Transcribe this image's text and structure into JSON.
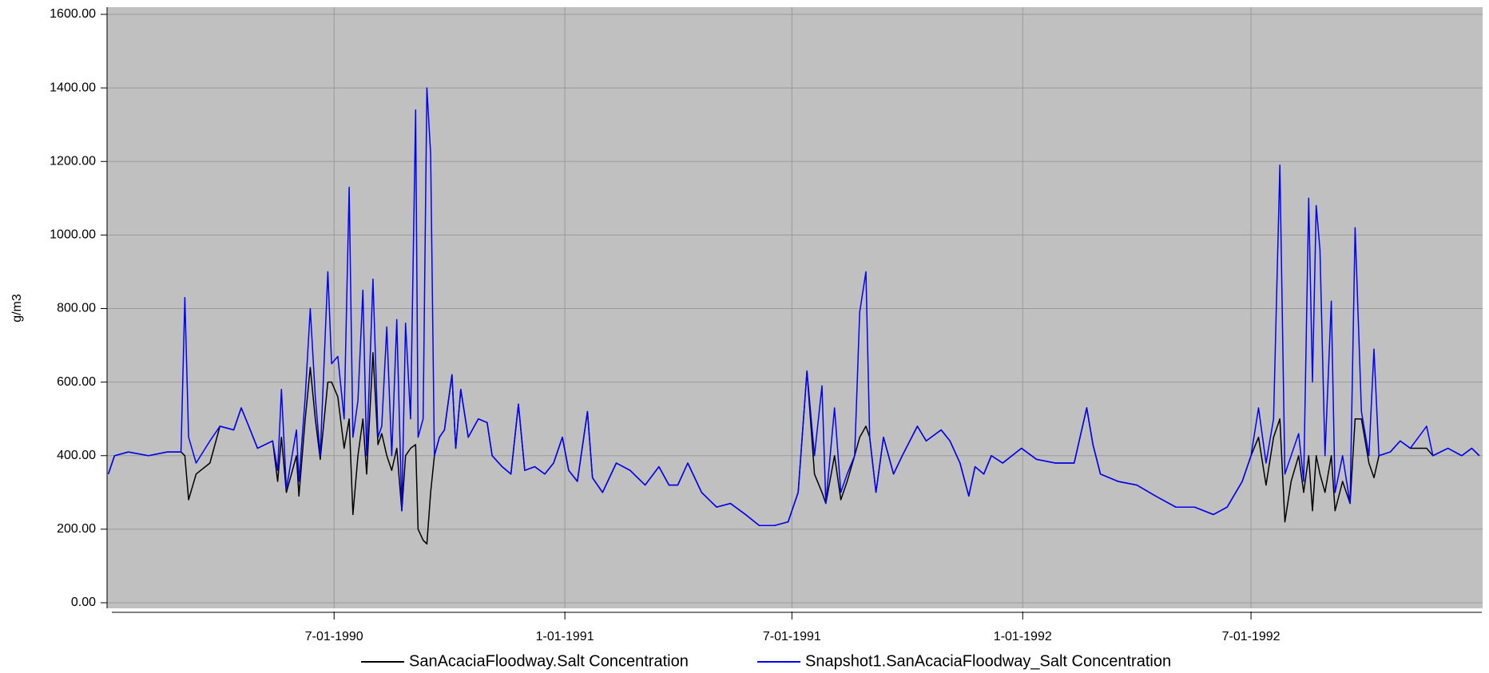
{
  "chart_data": {
    "type": "line",
    "y_label": "g/m3",
    "x": [
      "1-02-1990",
      "1-07-1990",
      "1-18-1990",
      "2-03-1990",
      "2-18-1990",
      "3-01-1990",
      "3-04-1990",
      "3-07-1990",
      "3-13-1990",
      "3-24-1990",
      "4-01-1990",
      "4-12-1990",
      "4-18-1990",
      "4-24-1990",
      "5-01-1990",
      "5-13-1990",
      "5-17-1990",
      "5-20-1990",
      "5-24-1990",
      "6-01-1990",
      "6-03-1990",
      "6-08-1990",
      "6-12-1990",
      "6-16-1990",
      "6-20-1990",
      "6-26-1990",
      "6-29-1990",
      "7-04-1990",
      "7-09-1990",
      "7-13-1990",
      "7-16-1990",
      "7-20-1990",
      "7-24-1990",
      "7-27-1990",
      "8-01-1990",
      "8-05-1990",
      "8-08-1990",
      "8-12-1990",
      "8-16-1990",
      "8-20-1990",
      "8-24-1990",
      "8-27-1990",
      "8-31-1990",
      "9-04-1990",
      "9-06-1990",
      "9-10-1990",
      "9-13-1990",
      "9-16-1990",
      "9-19-1990",
      "9-23-1990",
      "9-27-1990",
      "10-03-1990",
      "10-06-1990",
      "10-10-1990",
      "10-16-1990",
      "10-24-1990",
      "10-31-1990",
      "11-04-1990",
      "11-12-1990",
      "11-19-1990",
      "11-25-1990",
      "11-30-1990",
      "12-08-1990",
      "12-16-1990",
      "12-23-1990",
      "12-30-1990",
      "1-04-1991",
      "1-11-1991",
      "1-19-1991",
      "1-23-1991",
      "1-31-1991",
      "2-11-1991",
      "2-22-1991",
      "3-06-1991",
      "3-17-1991",
      "3-25-1991",
      "4-01-1991",
      "4-09-1991",
      "4-20-1991",
      "5-02-1991",
      "5-13-1991",
      "5-25-1991",
      "6-05-1991",
      "6-17-1991",
      "6-28-1991",
      "7-06-1991",
      "7-13-1991",
      "7-19-1991",
      "7-25-1991",
      "7-28-1991",
      "8-04-1991",
      "8-09-1991",
      "8-14-1991",
      "8-20-1991",
      "8-24-1991",
      "8-29-1991",
      "9-01-1991",
      "9-06-1991",
      "9-12-1991",
      "9-20-1991",
      "9-27-1991",
      "10-09-1991",
      "10-16-1991",
      "10-28-1991",
      "11-04-1991",
      "11-12-1991",
      "11-19-1991",
      "11-24-1991",
      "12-01-1991",
      "12-07-1991",
      "12-16-1991",
      "12-31-1991",
      "1-12-1992",
      "1-27-1992",
      "2-11-1992",
      "2-21-1992",
      "2-26-1992",
      "3-03-1992",
      "3-17-1992",
      "4-01-1992",
      "4-16-1992",
      "5-02-1992",
      "5-17-1992",
      "6-01-1992",
      "6-12-1992",
      "6-24-1992",
      "7-01-1992",
      "7-07-1992",
      "7-13-1992",
      "7-19-1992",
      "7-24-1992",
      "7-28-1992",
      "8-02-1992",
      "8-08-1992",
      "8-12-1992",
      "8-16-1992",
      "8-19-1992",
      "8-22-1992",
      "8-25-1992",
      "8-29-1992",
      "9-03-1992",
      "9-06-1992",
      "9-12-1992",
      "9-18-1992",
      "9-22-1992",
      "9-27-1992",
      "10-03-1992",
      "10-07-1992",
      "10-11-1992",
      "10-20-1992",
      "10-28-1992",
      "11-05-1992",
      "11-18-1992",
      "11-23-1992",
      "12-05-1992",
      "12-16-1992",
      "12-24-1992",
      "12-30-1992"
    ],
    "series": [
      {
        "name": "SanAcaciaFloodway.Salt Concentration",
        "color": "#000000",
        "values": [
          350,
          400,
          410,
          400,
          410,
          410,
          400,
          280,
          350,
          380,
          480,
          470,
          530,
          480,
          420,
          440,
          330,
          450,
          300,
          400,
          290,
          500,
          640,
          500,
          390,
          600,
          600,
          560,
          420,
          500,
          240,
          400,
          500,
          350,
          680,
          430,
          460,
          400,
          360,
          420,
          250,
          400,
          420,
          430,
          200,
          170,
          160,
          300,
          400,
          450,
          470,
          620,
          420,
          580,
          450,
          500,
          490,
          400,
          370,
          350,
          540,
          360,
          370,
          350,
          380,
          450,
          360,
          330,
          520,
          340,
          300,
          380,
          360,
          320,
          370,
          320,
          320,
          380,
          300,
          260,
          270,
          240,
          210,
          210,
          220,
          300,
          630,
          350,
          300,
          270,
          400,
          280,
          330,
          400,
          450,
          480,
          450,
          300,
          450,
          350,
          400,
          480,
          440,
          470,
          440,
          380,
          290,
          370,
          350,
          400,
          380,
          420,
          390,
          380,
          380,
          530,
          430,
          350,
          330,
          320,
          290,
          260,
          260,
          240,
          260,
          330,
          400,
          450,
          320,
          450,
          500,
          220,
          330,
          400,
          300,
          400,
          250,
          400,
          350,
          300,
          400,
          250,
          330,
          270,
          500,
          500,
          380,
          340,
          400,
          410,
          440,
          420,
          420,
          400,
          420,
          400,
          420,
          400
        ]
      },
      {
        "name": "Snapshot1.SanAcaciaFloodway_Salt Concentration",
        "color": "#0000ff",
        "values": [
          350,
          400,
          410,
          400,
          410,
          410,
          830,
          450,
          380,
          440,
          480,
          470,
          530,
          480,
          420,
          440,
          360,
          580,
          310,
          470,
          330,
          560,
          800,
          560,
          400,
          900,
          650,
          670,
          500,
          1130,
          450,
          550,
          850,
          400,
          880,
          450,
          480,
          750,
          400,
          770,
          250,
          760,
          500,
          1340,
          450,
          500,
          1400,
          1220,
          400,
          450,
          470,
          620,
          420,
          580,
          450,
          500,
          490,
          400,
          370,
          350,
          540,
          360,
          370,
          350,
          380,
          450,
          360,
          330,
          520,
          340,
          300,
          380,
          360,
          320,
          370,
          320,
          320,
          380,
          300,
          260,
          270,
          240,
          210,
          210,
          220,
          300,
          630,
          400,
          590,
          270,
          530,
          300,
          350,
          400,
          790,
          900,
          450,
          300,
          450,
          350,
          400,
          480,
          440,
          470,
          440,
          380,
          290,
          370,
          350,
          400,
          380,
          420,
          390,
          380,
          380,
          530,
          430,
          350,
          330,
          320,
          290,
          260,
          260,
          240,
          260,
          330,
          400,
          530,
          380,
          500,
          1190,
          350,
          400,
          460,
          330,
          1100,
          600,
          1080,
          960,
          400,
          820,
          300,
          400,
          270,
          1020,
          520,
          400,
          690,
          400,
          410,
          440,
          420,
          480,
          400,
          420,
          400,
          420,
          400
        ]
      }
    ],
    "xlim": [
      "1-01-1990",
      "1-01-1993"
    ],
    "xticks": [
      "7-01-1990",
      "1-01-1991",
      "7-01-1991",
      "1-01-1992",
      "7-01-1992"
    ],
    "ylim": [
      0,
      1600
    ],
    "yticks": [
      {
        "value": 0,
        "label": "0.00"
      },
      {
        "value": 200,
        "label": "200.00"
      },
      {
        "value": 400,
        "label": "400.00"
      },
      {
        "value": 600,
        "label": "600.00"
      },
      {
        "value": 800,
        "label": "800.00"
      },
      {
        "value": 1000,
        "label": "1000.00"
      },
      {
        "value": 1200,
        "label": "1200.00"
      },
      {
        "value": 1400,
        "label": "1400.00"
      },
      {
        "value": 1600,
        "label": "1600.00"
      }
    ],
    "grid": true,
    "legend": "bottom"
  }
}
